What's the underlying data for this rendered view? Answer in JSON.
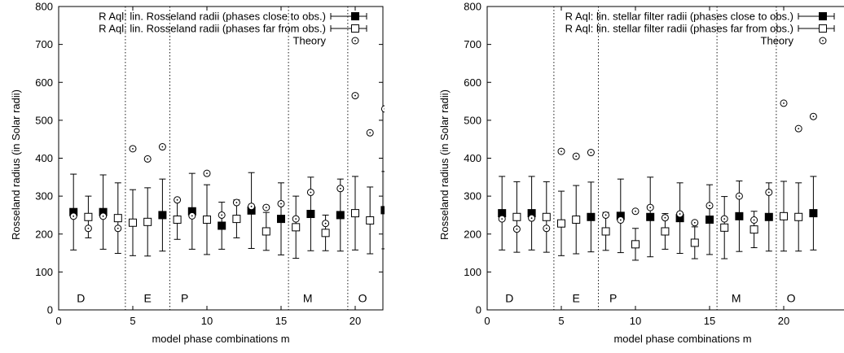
{
  "chart_data": [
    {
      "type": "scatter",
      "xlabel": "model phase combinations m",
      "ylabel": "Rosseland radius (in Solar radii)",
      "xlim": [
        0,
        23
      ],
      "ylim": [
        0,
        800
      ],
      "xticks": [
        "0",
        "5",
        "10",
        "15",
        "20"
      ],
      "yticks": [
        "0",
        "100",
        "200",
        "300",
        "400",
        "500",
        "600",
        "700",
        "800"
      ],
      "legend_position": "top-right",
      "region_dividers": [
        4.5,
        7.5,
        15.5,
        19.5
      ],
      "regions": [
        {
          "label": "D",
          "x": 1.5
        },
        {
          "label": "E",
          "x": 6
        },
        {
          "label": "P",
          "x": 8.5
        },
        {
          "label": "M",
          "x": 16.8
        },
        {
          "label": "O",
          "x": 20.5
        }
      ],
      "series": [
        {
          "name": "R Aql: lin. Rosseland radii (phases close to obs.)",
          "marker": "filled-square",
          "points": [
            {
              "x": 1,
              "y": 258,
              "err": 100
            },
            {
              "x": 3,
              "y": 258,
              "err": 98
            },
            {
              "x": 7,
              "y": 250,
              "err": 95
            },
            {
              "x": 9,
              "y": 260,
              "err": 100
            },
            {
              "x": 11,
              "y": 222,
              "err": 62
            },
            {
              "x": 13,
              "y": 262,
              "err": 100
            },
            {
              "x": 15,
              "y": 240,
              "err": 95
            },
            {
              "x": 17,
              "y": 253,
              "err": 97
            },
            {
              "x": 19,
              "y": 250,
              "err": 95
            },
            {
              "x": 22,
              "y": 263,
              "err": 102
            }
          ]
        },
        {
          "name": "R Aql: lin. Rosseland radii (phases far from obs.)",
          "marker": "open-square",
          "points": [
            {
              "x": 2,
              "y": 245,
              "err": 55
            },
            {
              "x": 4,
              "y": 242,
              "err": 93
            },
            {
              "x": 5,
              "y": 230,
              "err": 87
            },
            {
              "x": 6,
              "y": 232,
              "err": 90
            },
            {
              "x": 8,
              "y": 238,
              "err": 52
            },
            {
              "x": 10,
              "y": 238,
              "err": 92
            },
            {
              "x": 12,
              "y": 240,
              "err": 50
            },
            {
              "x": 14,
              "y": 207,
              "err": 50
            },
            {
              "x": 16,
              "y": 218,
              "err": 82
            },
            {
              "x": 18,
              "y": 203,
              "err": 47
            },
            {
              "x": 20,
              "y": 255,
              "err": 97
            },
            {
              "x": 21,
              "y": 236,
              "err": 88
            }
          ]
        },
        {
          "name": "Theory",
          "marker": "circle-dot",
          "points": [
            {
              "x": 1,
              "y": 247
            },
            {
              "x": 2,
              "y": 215
            },
            {
              "x": 3,
              "y": 247
            },
            {
              "x": 4,
              "y": 215
            },
            {
              "x": 5,
              "y": 425
            },
            {
              "x": 6,
              "y": 398
            },
            {
              "x": 7,
              "y": 430
            },
            {
              "x": 8,
              "y": 290
            },
            {
              "x": 9,
              "y": 248
            },
            {
              "x": 10,
              "y": 360
            },
            {
              "x": 11,
              "y": 250
            },
            {
              "x": 12,
              "y": 283
            },
            {
              "x": 13,
              "y": 273
            },
            {
              "x": 14,
              "y": 270
            },
            {
              "x": 15,
              "y": 280
            },
            {
              "x": 16,
              "y": 240
            },
            {
              "x": 17,
              "y": 310
            },
            {
              "x": 18,
              "y": 228
            },
            {
              "x": 19,
              "y": 320
            },
            {
              "x": 20,
              "y": 565
            },
            {
              "x": 21,
              "y": 467
            },
            {
              "x": 22,
              "y": 530
            }
          ]
        }
      ]
    },
    {
      "type": "scatter",
      "xlabel": "model phase combinations m",
      "ylabel": "Rosseland radius (in Solar radii)",
      "xlim": [
        0,
        23
      ],
      "ylim": [
        0,
        800
      ],
      "xticks": [
        "0",
        "5",
        "10",
        "15",
        "20"
      ],
      "yticks": [
        "0",
        "100",
        "200",
        "300",
        "400",
        "500",
        "600",
        "700",
        "800"
      ],
      "legend_position": "top-right",
      "region_dividers": [
        4.5,
        7.5,
        15.5,
        19.5
      ],
      "regions": [
        {
          "label": "D",
          "x": 1.5
        },
        {
          "label": "E",
          "x": 6
        },
        {
          "label": "P",
          "x": 8.5
        },
        {
          "label": "M",
          "x": 16.8
        },
        {
          "label": "O",
          "x": 20.5
        }
      ],
      "series": [
        {
          "name": "R Aql: lin. stellar filter radii (phases close to obs.)",
          "marker": "filled-square",
          "points": [
            {
              "x": 1,
              "y": 255,
              "err": 97
            },
            {
              "x": 3,
              "y": 255,
              "err": 97
            },
            {
              "x": 7,
              "y": 245,
              "err": 92
            },
            {
              "x": 9,
              "y": 248,
              "err": 97
            },
            {
              "x": 11,
              "y": 245,
              "err": 105
            },
            {
              "x": 13,
              "y": 242,
              "err": 93
            },
            {
              "x": 15,
              "y": 238,
              "err": 92
            },
            {
              "x": 17,
              "y": 247,
              "err": 93
            },
            {
              "x": 19,
              "y": 245,
              "err": 90
            },
            {
              "x": 22,
              "y": 255,
              "err": 97
            }
          ]
        },
        {
          "name": "R Aql: lin. stellar filter radii (phases far from obs.)",
          "marker": "open-square",
          "points": [
            {
              "x": 2,
              "y": 245,
              "err": 93
            },
            {
              "x": 4,
              "y": 245,
              "err": 93
            },
            {
              "x": 5,
              "y": 228,
              "err": 85
            },
            {
              "x": 6,
              "y": 238,
              "err": 90
            },
            {
              "x": 8,
              "y": 207,
              "err": 50
            },
            {
              "x": 10,
              "y": 173,
              "err": 42
            },
            {
              "x": 12,
              "y": 207,
              "err": 47
            },
            {
              "x": 14,
              "y": 177,
              "err": 42
            },
            {
              "x": 16,
              "y": 217,
              "err": 82
            },
            {
              "x": 18,
              "y": 212,
              "err": 48
            },
            {
              "x": 20,
              "y": 247,
              "err": 92
            },
            {
              "x": 21,
              "y": 245,
              "err": 90
            }
          ]
        },
        {
          "name": "Theory",
          "marker": "circle-dot",
          "points": [
            {
              "x": 1,
              "y": 240
            },
            {
              "x": 2,
              "y": 213
            },
            {
              "x": 3,
              "y": 242
            },
            {
              "x": 4,
              "y": 215
            },
            {
              "x": 5,
              "y": 418
            },
            {
              "x": 6,
              "y": 405
            },
            {
              "x": 7,
              "y": 415
            },
            {
              "x": 8,
              "y": 250
            },
            {
              "x": 9,
              "y": 237
            },
            {
              "x": 10,
              "y": 260
            },
            {
              "x": 11,
              "y": 270
            },
            {
              "x": 12,
              "y": 243
            },
            {
              "x": 13,
              "y": 253
            },
            {
              "x": 14,
              "y": 230
            },
            {
              "x": 15,
              "y": 275
            },
            {
              "x": 16,
              "y": 240
            },
            {
              "x": 17,
              "y": 300
            },
            {
              "x": 18,
              "y": 237
            },
            {
              "x": 19,
              "y": 310
            },
            {
              "x": 20,
              "y": 545
            },
            {
              "x": 21,
              "y": 478
            },
            {
              "x": 22,
              "y": 510
            }
          ]
        }
      ]
    }
  ]
}
